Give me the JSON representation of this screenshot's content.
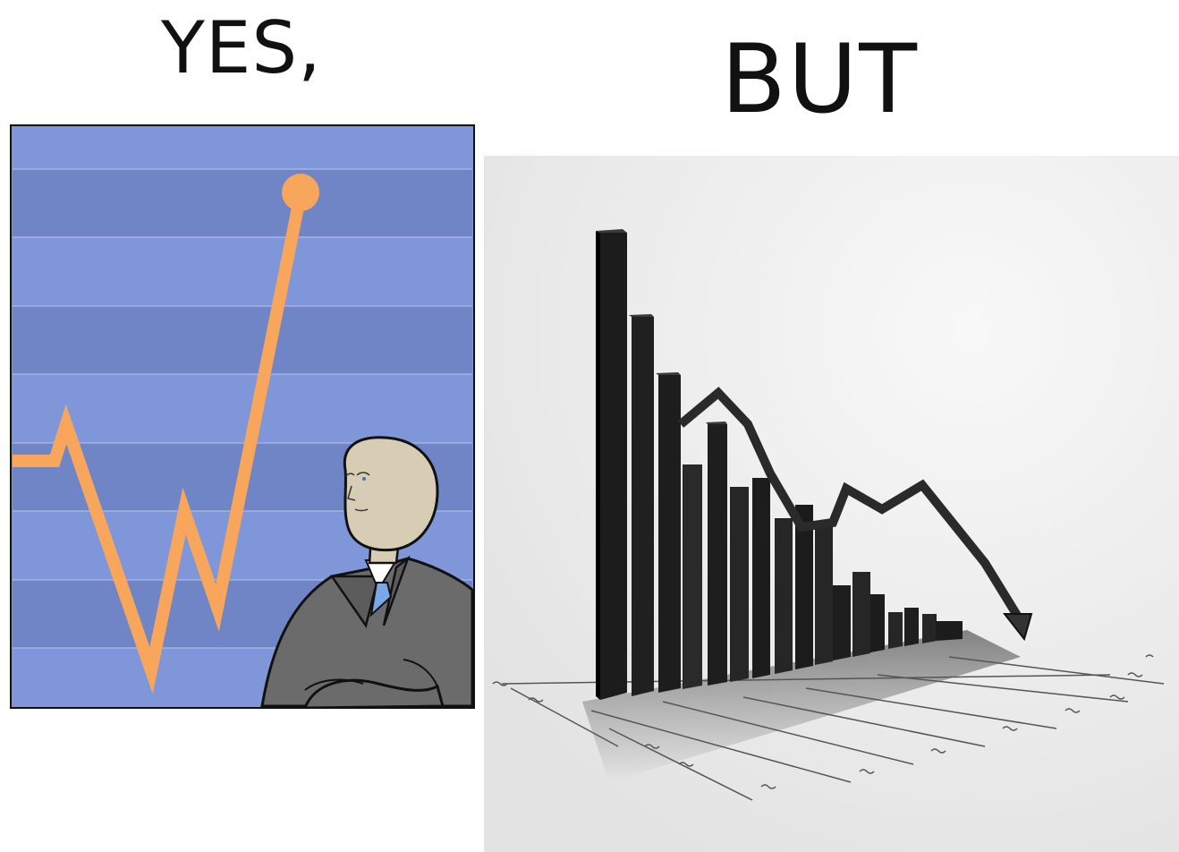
{
  "captions": {
    "left": "YES,",
    "right": "BUT"
  },
  "left_panel": {
    "background_color": "#7f97d8",
    "band_color": "#6f85c6",
    "line_color": "#f7a65c",
    "icons": [
      "businessman-figure"
    ]
  },
  "right_panel": {
    "background_color": "#eeeeee",
    "bar_color": "#1c1c1c",
    "icons": [
      "falling-arrow"
    ]
  }
}
